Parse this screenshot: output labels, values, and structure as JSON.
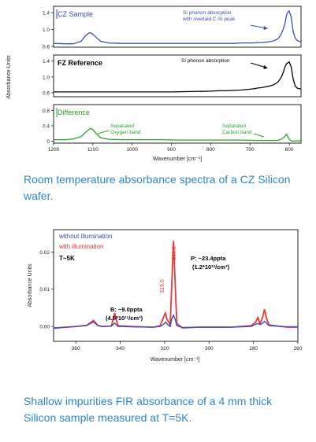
{
  "figure1": {
    "caption": "Room temperature absorbance spectra of a CZ Silicon wafer.",
    "y_label": "Absorbance Units",
    "x_label": "Wavenumber [cm⁻¹]",
    "x_ticks": [
      "1200",
      "1100",
      "1000",
      "900",
      "800",
      "700",
      "600"
    ],
    "colors": {
      "cz": "#3a4fb0",
      "fz": "#000000",
      "diff": "#2aa12a",
      "frame": "#222222"
    },
    "panels": [
      {
        "id": "cz",
        "title": "CZ Sample",
        "y_ticks": [
          "1.4",
          "1.0",
          "0.6"
        ],
        "annotation": "Si phonon absorption\nwith overlaid C-Si peak"
      },
      {
        "id": "fz",
        "title": "FZ Reference",
        "y_ticks": [
          "1.4",
          "1.0",
          "0.6"
        ],
        "annotation": "Si phonon absorption"
      },
      {
        "id": "diff",
        "title": "Difference",
        "y_ticks": [
          "0.8",
          "0.4",
          "0"
        ],
        "annotation_oxygen": "Separated\nOxygen band",
        "annotation_carbon": "Separated\nCarbon band"
      }
    ]
  },
  "figure2": {
    "caption": "Shallow impurities FIR absorbance of a 4 mm thick Silicon sample measured at T=5K.",
    "y_label": "Absorbance Units",
    "x_label": "Wavenumber [cm⁻¹]",
    "x_ticks": [
      "360",
      "340",
      "320",
      "300",
      "280",
      "260"
    ],
    "y_ticks": [
      "0.02",
      "0.01",
      "0.00"
    ],
    "legend": {
      "without": "without illumination",
      "with": "with illumination",
      "temp": "T~5K"
    },
    "peak_labels": {
      "p_line": "316.0",
      "b_line": "319.6"
    },
    "ann_p_1": "P: ~23.4ppta",
    "ann_p_2": "(1.2*10¹²/cm³)",
    "ann_b_1": "B: ~9.0ppta",
    "ann_b_2": "(4.5*10¹¹/cm³)",
    "colors": {
      "without": "#3a4fb0",
      "with": "#e23a3a",
      "frame": "#222222"
    }
  },
  "chart_data": [
    {
      "type": "line",
      "title": "",
      "xlabel": "Wavenumber [cm⁻¹]",
      "ylabel": "Absorbance Units",
      "xlim": [
        1200,
        570
      ],
      "panels": [
        {
          "name": "CZ Sample",
          "ylim": [
            0.58,
            1.55
          ],
          "x": [
            1200,
            1170,
            1150,
            1130,
            1120,
            1110,
            1105,
            1100,
            1090,
            1080,
            1060,
            1030,
            1000,
            960,
            920,
            880,
            850,
            820,
            800,
            780,
            760,
            740,
            720,
            700,
            690,
            680,
            670,
            660,
            650,
            640,
            630,
            625,
            620,
            615,
            611,
            607,
            603,
            600,
            595,
            590,
            585,
            580,
            575,
            570
          ],
          "y": [
            0.67,
            0.66,
            0.66,
            0.72,
            0.84,
            0.92,
            0.92,
            0.89,
            0.8,
            0.72,
            0.68,
            0.67,
            0.67,
            0.67,
            0.67,
            0.67,
            0.67,
            0.67,
            0.67,
            0.67,
            0.67,
            0.67,
            0.68,
            0.68,
            0.68,
            0.69,
            0.69,
            0.7,
            0.71,
            0.73,
            0.77,
            0.82,
            0.9,
            1.02,
            1.14,
            1.34,
            1.42,
            1.44,
            1.3,
            0.95,
            0.8,
            0.74,
            0.72,
            0.71
          ]
        },
        {
          "name": "FZ Reference",
          "ylim": [
            0.5,
            1.55
          ],
          "x": [
            1200,
            1150,
            1100,
            1050,
            1000,
            950,
            900,
            850,
            800,
            780,
            760,
            740,
            720,
            700,
            690,
            680,
            670,
            660,
            650,
            640,
            630,
            625,
            620,
            615,
            611,
            607,
            603,
            600,
            595,
            590,
            585,
            580,
            575,
            570
          ],
          "y": [
            0.62,
            0.62,
            0.62,
            0.62,
            0.62,
            0.62,
            0.62,
            0.63,
            0.64,
            0.65,
            0.65,
            0.66,
            0.67,
            0.69,
            0.7,
            0.72,
            0.73,
            0.75,
            0.77,
            0.8,
            0.86,
            0.92,
            1.0,
            1.12,
            1.25,
            1.33,
            1.36,
            1.38,
            1.25,
            0.95,
            0.78,
            0.72,
            0.7,
            0.7
          ]
        },
        {
          "name": "Difference",
          "ylim": [
            -0.05,
            0.95
          ],
          "x": [
            1200,
            1170,
            1150,
            1130,
            1120,
            1110,
            1105,
            1100,
            1090,
            1080,
            1060,
            1030,
            1000,
            960,
            920,
            880,
            840,
            800,
            760,
            720,
            680,
            650,
            630,
            620,
            612,
            607,
            603,
            598,
            592,
            585,
            575,
            570
          ],
          "y": [
            0.04,
            0.04,
            0.06,
            0.12,
            0.22,
            0.31,
            0.33,
            0.3,
            0.18,
            0.09,
            0.05,
            0.04,
            0.04,
            0.04,
            0.04,
            0.03,
            0.03,
            0.03,
            0.03,
            0.03,
            0.02,
            0.02,
            0.02,
            0.05,
            0.12,
            0.18,
            0.1,
            0.03,
            0.0,
            0.01,
            0.01,
            0.02
          ]
        }
      ]
    },
    {
      "type": "line",
      "title": "",
      "xlabel": "Wavenumber [cm⁻¹]",
      "ylabel": "Absorbance Units",
      "xlim": [
        370,
        260
      ],
      "ylim": [
        -0.004,
        0.026
      ],
      "series": [
        {
          "name": "without illumination",
          "x": [
            370,
            360,
            355,
            352,
            350,
            348,
            344,
            342.5,
            341,
            335,
            325,
            322,
            320,
            319.6,
            319,
            317.5,
            316.8,
            316,
            315.2,
            314.5,
            312,
            305,
            290,
            281,
            279,
            278,
            277,
            276,
            275,
            274,
            273,
            265,
            260
          ],
          "y": [
            -0.0004,
            0.0,
            0.0003,
            0.0012,
            0.0002,
            0.0,
            0.0001,
            0.0009,
            0.0,
            -0.0001,
            -0.0002,
            0.0,
            0.0008,
            0.0012,
            0.0007,
            0.0,
            0.002,
            0.003,
            0.0018,
            0.0002,
            -0.0003,
            -0.0002,
            -0.0002,
            0.0,
            0.0006,
            0.0008,
            0.0005,
            0.0008,
            0.0014,
            0.0008,
            0.0002,
            -0.0001,
            -0.0001
          ]
        },
        {
          "name": "with illumination",
          "x": [
            370,
            360,
            355,
            352,
            350,
            348,
            344,
            342.5,
            341,
            335,
            325,
            322,
            320,
            319.6,
            319,
            317.5,
            316.8,
            316,
            315.2,
            314.5,
            312,
            305,
            290,
            281,
            279,
            278,
            277,
            276,
            275,
            274,
            273,
            265,
            260
          ],
          "y": [
            -0.0005,
            0.0,
            0.0003,
            0.0016,
            0.0002,
            0.0,
            0.0001,
            0.0036,
            0.0002,
            0.0,
            -0.0002,
            0.0002,
            0.0032,
            0.0036,
            0.002,
            0.0004,
            0.011,
            0.023,
            0.011,
            0.0008,
            -0.0004,
            -0.0002,
            -0.0002,
            0.0002,
            0.0012,
            0.0024,
            0.0008,
            0.0022,
            0.0046,
            0.002,
            0.0004,
            -0.0002,
            -0.0002
          ]
        }
      ]
    }
  ]
}
